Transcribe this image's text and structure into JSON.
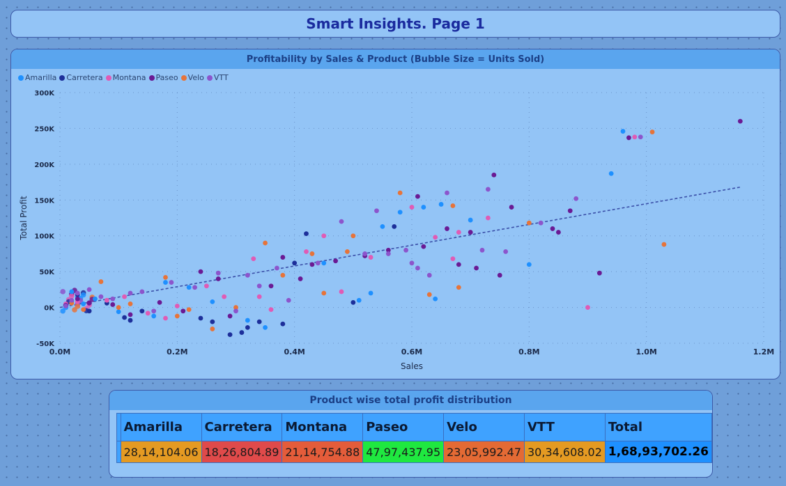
{
  "page_title": "Smart Insights. Page 1",
  "scatter_panel_title": "Profitability by Sales & Product (Bubble Size = Units Sold)",
  "table_panel_title": "Product wise total profit distribution",
  "colors": {
    "Amarilla": "#1e90ff",
    "Carretera": "#1d2f9a",
    "Montana": "#e05bb5",
    "Paseo": "#6a1a94",
    "Velo": "#e6743a",
    "VTT": "#8c55cc",
    "trend": "#3a4fa8"
  },
  "chart_data": {
    "type": "scatter",
    "title": "Profitability by Sales & Product (Bubble Size = Units Sold)",
    "xlabel": "Sales",
    "ylabel": "Total Profit",
    "xlim": [
      0,
      1.2
    ],
    "ylim": [
      -50000,
      300000
    ],
    "x_unit": "M",
    "x_ticks": [
      "0.0M",
      "0.2M",
      "0.4M",
      "0.6M",
      "0.8M",
      "1.0M",
      "1.2M"
    ],
    "y_ticks": [
      "300K",
      "250K",
      "200K",
      "150K",
      "100K",
      "50K",
      "0K",
      "-50K"
    ],
    "legend_position": "top-left",
    "grid": true,
    "trendline": {
      "x": [
        0.0,
        1.16
      ],
      "y": [
        0,
        168000
      ]
    },
    "series": [
      {
        "name": "Amarilla",
        "points": [
          [
            0.01,
            2000
          ],
          [
            0.02,
            8000
          ],
          [
            0.03,
            15000
          ],
          [
            0.02,
            22000
          ],
          [
            0.04,
            5000
          ],
          [
            0.06,
            12000
          ],
          [
            0.1,
            -6000
          ],
          [
            0.16,
            -12000
          ],
          [
            0.18,
            35000
          ],
          [
            0.22,
            28000
          ],
          [
            0.26,
            8000
          ],
          [
            0.32,
            -18000
          ],
          [
            0.35,
            -28000
          ],
          [
            0.45,
            62000
          ],
          [
            0.51,
            10000
          ],
          [
            0.53,
            20000
          ],
          [
            0.55,
            113000
          ],
          [
            0.58,
            133000
          ],
          [
            0.62,
            140000
          ],
          [
            0.64,
            12000
          ],
          [
            0.65,
            144000
          ],
          [
            0.7,
            122000
          ],
          [
            0.8,
            60000
          ],
          [
            0.94,
            187000
          ],
          [
            0.96,
            246000
          ]
        ]
      },
      {
        "name": "Carretera",
        "points": [
          [
            0.01,
            4000
          ],
          [
            0.03,
            18000
          ],
          [
            0.05,
            -5000
          ],
          [
            0.08,
            6000
          ],
          [
            0.11,
            -14000
          ],
          [
            0.12,
            -18000
          ],
          [
            0.14,
            -5000
          ],
          [
            0.24,
            -15000
          ],
          [
            0.26,
            -20000
          ],
          [
            0.29,
            -38000
          ],
          [
            0.31,
            -35000
          ],
          [
            0.32,
            -28000
          ],
          [
            0.34,
            -20000
          ],
          [
            0.38,
            -23000
          ],
          [
            0.4,
            62000
          ],
          [
            0.42,
            103000
          ],
          [
            0.5,
            7000
          ],
          [
            0.57,
            113000
          ]
        ]
      },
      {
        "name": "Montana",
        "points": [
          [
            0.01,
            5000
          ],
          [
            0.03,
            8000
          ],
          [
            0.08,
            10000
          ],
          [
            0.11,
            15000
          ],
          [
            0.15,
            -8000
          ],
          [
            0.18,
            -15000
          ],
          [
            0.2,
            2000
          ],
          [
            0.25,
            30000
          ],
          [
            0.28,
            15000
          ],
          [
            0.33,
            68000
          ],
          [
            0.34,
            15000
          ],
          [
            0.36,
            -3000
          ],
          [
            0.42,
            78000
          ],
          [
            0.45,
            100000
          ],
          [
            0.48,
            22000
          ],
          [
            0.53,
            70000
          ],
          [
            0.6,
            140000
          ],
          [
            0.64,
            98000
          ],
          [
            0.67,
            68000
          ],
          [
            0.68,
            105000
          ],
          [
            0.73,
            125000
          ],
          [
            0.9,
            0
          ],
          [
            0.98,
            238000
          ]
        ]
      },
      {
        "name": "Paseo",
        "points": [
          [
            0.01,
            3000
          ],
          [
            0.03,
            12000
          ],
          [
            0.05,
            6000
          ],
          [
            0.09,
            4000
          ],
          [
            0.12,
            -10000
          ],
          [
            0.17,
            7000
          ],
          [
            0.21,
            -5000
          ],
          [
            0.24,
            50000
          ],
          [
            0.27,
            40000
          ],
          [
            0.29,
            -12000
          ],
          [
            0.36,
            30000
          ],
          [
            0.38,
            70000
          ],
          [
            0.41,
            40000
          ],
          [
            0.43,
            60000
          ],
          [
            0.47,
            65000
          ],
          [
            0.52,
            72000
          ],
          [
            0.56,
            80000
          ],
          [
            0.61,
            155000
          ],
          [
            0.62,
            85000
          ],
          [
            0.66,
            110000
          ],
          [
            0.68,
            60000
          ],
          [
            0.7,
            105000
          ],
          [
            0.71,
            55000
          ],
          [
            0.74,
            185000
          ],
          [
            0.75,
            45000
          ],
          [
            0.77,
            140000
          ],
          [
            0.84,
            110000
          ],
          [
            0.85,
            105000
          ],
          [
            0.87,
            135000
          ],
          [
            0.92,
            48000
          ],
          [
            0.97,
            237000
          ],
          [
            1.16,
            260000
          ]
        ]
      },
      {
        "name": "Velo",
        "points": [
          [
            0.02,
            6000
          ],
          [
            0.04,
            -3000
          ],
          [
            0.07,
            36000
          ],
          [
            0.1,
            0
          ],
          [
            0.12,
            5000
          ],
          [
            0.18,
            42000
          ],
          [
            0.2,
            -12000
          ],
          [
            0.22,
            -3000
          ],
          [
            0.26,
            -30000
          ],
          [
            0.3,
            0
          ],
          [
            0.35,
            90000
          ],
          [
            0.38,
            45000
          ],
          [
            0.43,
            75000
          ],
          [
            0.45,
            20000
          ],
          [
            0.49,
            78000
          ],
          [
            0.5,
            100000
          ],
          [
            0.58,
            160000
          ],
          [
            0.63,
            18000
          ],
          [
            0.67,
            142000
          ],
          [
            0.68,
            28000
          ],
          [
            0.8,
            118000
          ],
          [
            1.01,
            245000
          ],
          [
            1.03,
            88000
          ]
        ]
      },
      {
        "name": "VTT",
        "points": [
          [
            0.01,
            2000
          ],
          [
            0.02,
            10000
          ],
          [
            0.03,
            20000
          ],
          [
            0.05,
            25000
          ],
          [
            0.07,
            15000
          ],
          [
            0.09,
            12000
          ],
          [
            0.12,
            20000
          ],
          [
            0.14,
            22000
          ],
          [
            0.16,
            -5000
          ],
          [
            0.19,
            35000
          ],
          [
            0.23,
            28000
          ],
          [
            0.27,
            48000
          ],
          [
            0.3,
            -5000
          ],
          [
            0.32,
            45000
          ],
          [
            0.34,
            30000
          ],
          [
            0.37,
            55000
          ],
          [
            0.39,
            10000
          ],
          [
            0.44,
            62000
          ],
          [
            0.48,
            120000
          ],
          [
            0.52,
            75000
          ],
          [
            0.54,
            135000
          ],
          [
            0.56,
            75000
          ],
          [
            0.59,
            80000
          ],
          [
            0.6,
            62000
          ],
          [
            0.61,
            55000
          ],
          [
            0.63,
            45000
          ],
          [
            0.66,
            160000
          ],
          [
            0.72,
            80000
          ],
          [
            0.73,
            165000
          ],
          [
            0.76,
            78000
          ],
          [
            0.82,
            118000
          ],
          [
            0.88,
            152000
          ],
          [
            0.99,
            238000
          ]
        ]
      }
    ]
  },
  "table": {
    "headers": [
      "Amarilla",
      "Carretera",
      "Montana",
      "Paseo",
      "Velo",
      "VTT",
      "Total"
    ],
    "values": [
      "28,14,104.06",
      "18,26,804.89",
      "21,14,754.88",
      "47,97,437.95",
      "23,05,992.47",
      "30,34,608.02",
      "1,68,93,702.26"
    ],
    "cell_colors": [
      "#e49a22",
      "#e04a4a",
      "#e45c3a",
      "#1fe840",
      "#e46a34",
      "#e49a22",
      "#1e90ff"
    ]
  }
}
